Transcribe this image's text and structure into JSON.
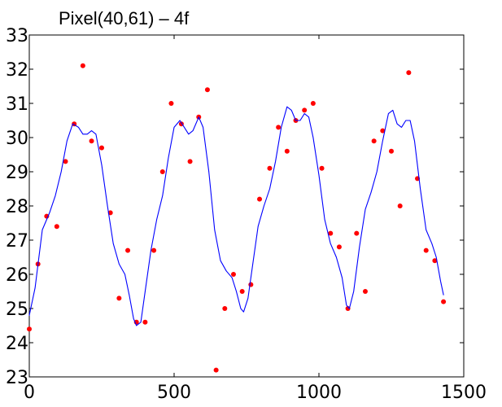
{
  "chart_data": {
    "type": "scatter",
    "title": "Pixel(40,61) – 4f",
    "xlabel": "",
    "ylabel": "",
    "xlim": [
      0,
      1500
    ],
    "ylim": [
      23,
      33
    ],
    "x_ticks": [
      0,
      500,
      1000,
      1500
    ],
    "y_ticks": [
      23,
      24,
      25,
      26,
      27,
      28,
      29,
      30,
      31,
      32,
      33
    ],
    "grid": false,
    "legend": "none",
    "series": [
      {
        "kind": "scatter",
        "color": "#ff0000",
        "points": [
          [
            0,
            24.4
          ],
          [
            30,
            26.3
          ],
          [
            60,
            27.7
          ],
          [
            95,
            27.4
          ],
          [
            125,
            29.3
          ],
          [
            155,
            30.4
          ],
          [
            185,
            32.1
          ],
          [
            215,
            29.9
          ],
          [
            250,
            29.7
          ],
          [
            280,
            27.8
          ],
          [
            310,
            25.3
          ],
          [
            340,
            26.7
          ],
          [
            370,
            24.6
          ],
          [
            400,
            24.6
          ],
          [
            430,
            26.7
          ],
          [
            460,
            29.0
          ],
          [
            490,
            31.0
          ],
          [
            525,
            30.4
          ],
          [
            555,
            29.3
          ],
          [
            585,
            30.6
          ],
          [
            615,
            31.4
          ],
          [
            645,
            23.2
          ],
          [
            675,
            25.0
          ],
          [
            705,
            26.0
          ],
          [
            735,
            25.5
          ],
          [
            765,
            25.7
          ],
          [
            795,
            28.2
          ],
          [
            830,
            29.1
          ],
          [
            860,
            30.3
          ],
          [
            890,
            29.6
          ],
          [
            920,
            30.5
          ],
          [
            950,
            30.8
          ],
          [
            980,
            31.0
          ],
          [
            1010,
            29.1
          ],
          [
            1040,
            27.2
          ],
          [
            1070,
            26.8
          ],
          [
            1100,
            25.0
          ],
          [
            1130,
            27.2
          ],
          [
            1160,
            25.5
          ],
          [
            1190,
            29.9
          ],
          [
            1220,
            30.2
          ],
          [
            1250,
            29.6
          ],
          [
            1280,
            28.0
          ],
          [
            1310,
            31.9
          ],
          [
            1340,
            28.8
          ],
          [
            1370,
            26.7
          ],
          [
            1400,
            26.4
          ],
          [
            1430,
            25.2
          ]
        ]
      },
      {
        "kind": "line",
        "color": "#0000ff",
        "points": [
          [
            0,
            24.8
          ],
          [
            20,
            25.6
          ],
          [
            45,
            27.3
          ],
          [
            70,
            27.8
          ],
          [
            90,
            28.3
          ],
          [
            110,
            29.0
          ],
          [
            130,
            29.9
          ],
          [
            150,
            30.4
          ],
          [
            170,
            30.3
          ],
          [
            185,
            30.1
          ],
          [
            200,
            30.1
          ],
          [
            215,
            30.2
          ],
          [
            230,
            30.1
          ],
          [
            250,
            29.2
          ],
          [
            270,
            28.0
          ],
          [
            290,
            26.9
          ],
          [
            310,
            26.3
          ],
          [
            330,
            26.0
          ],
          [
            345,
            25.4
          ],
          [
            360,
            24.7
          ],
          [
            370,
            24.5
          ],
          [
            385,
            24.6
          ],
          [
            400,
            25.5
          ],
          [
            420,
            26.7
          ],
          [
            440,
            27.6
          ],
          [
            460,
            28.3
          ],
          [
            480,
            29.4
          ],
          [
            500,
            30.3
          ],
          [
            520,
            30.5
          ],
          [
            535,
            30.3
          ],
          [
            550,
            30.1
          ],
          [
            565,
            30.2
          ],
          [
            585,
            30.6
          ],
          [
            600,
            30.3
          ],
          [
            620,
            29.0
          ],
          [
            640,
            27.3
          ],
          [
            660,
            26.4
          ],
          [
            680,
            26.1
          ],
          [
            700,
            25.9
          ],
          [
            715,
            25.5
          ],
          [
            730,
            25.0
          ],
          [
            740,
            24.9
          ],
          [
            755,
            25.3
          ],
          [
            770,
            26.2
          ],
          [
            790,
            27.4
          ],
          [
            810,
            28.0
          ],
          [
            830,
            28.5
          ],
          [
            850,
            29.3
          ],
          [
            870,
            30.3
          ],
          [
            890,
            30.9
          ],
          [
            905,
            30.8
          ],
          [
            920,
            30.5
          ],
          [
            935,
            30.5
          ],
          [
            950,
            30.7
          ],
          [
            965,
            30.6
          ],
          [
            980,
            30.0
          ],
          [
            1000,
            28.9
          ],
          [
            1020,
            27.6
          ],
          [
            1040,
            26.9
          ],
          [
            1060,
            26.5
          ],
          [
            1080,
            25.9
          ],
          [
            1095,
            25.1
          ],
          [
            1105,
            25.0
          ],
          [
            1120,
            25.5
          ],
          [
            1140,
            26.8
          ],
          [
            1160,
            27.9
          ],
          [
            1180,
            28.4
          ],
          [
            1200,
            29.0
          ],
          [
            1220,
            29.9
          ],
          [
            1240,
            30.7
          ],
          [
            1255,
            30.8
          ],
          [
            1270,
            30.4
          ],
          [
            1285,
            30.3
          ],
          [
            1300,
            30.5
          ],
          [
            1315,
            30.5
          ],
          [
            1330,
            29.9
          ],
          [
            1350,
            28.5
          ],
          [
            1370,
            27.3
          ],
          [
            1390,
            26.9
          ],
          [
            1405,
            26.5
          ],
          [
            1420,
            25.8
          ],
          [
            1430,
            25.4
          ]
        ]
      }
    ]
  }
}
